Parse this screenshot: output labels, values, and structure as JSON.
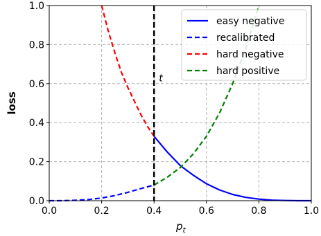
{
  "chart_data": {
    "type": "line",
    "xlabel": "p",
    "xlabel_subscript": "t",
    "ylabel": "loss",
    "xlim": [
      0.0,
      1.0
    ],
    "ylim": [
      0.0,
      1.0
    ],
    "grid": true,
    "legend_position": "top-right",
    "x_ticks": [
      "0.0",
      "0.2",
      "0.4",
      "0.6",
      "0.8",
      "1.0"
    ],
    "y_ticks": [
      "0.0",
      "0.2",
      "0.4",
      "0.6",
      "0.8",
      "1.0"
    ],
    "threshold": {
      "x": 0.4,
      "label": "t",
      "color": "#000000"
    },
    "series": [
      {
        "name": "easy negative",
        "color": "#0000ff",
        "dash": "solid",
        "x": [
          0.4,
          0.45,
          0.5,
          0.55,
          0.6,
          0.65,
          0.7,
          0.75,
          0.8,
          0.85,
          0.9,
          0.95,
          1.0
        ],
        "y": [
          0.33,
          0.25,
          0.18,
          0.13,
          0.087,
          0.055,
          0.032,
          0.017,
          0.008,
          0.003,
          0.001,
          0.0,
          0.0
        ]
      },
      {
        "name": "recalibrated",
        "color": "#0000ff",
        "dash": "dashed",
        "x": [
          0.0,
          0.05,
          0.1,
          0.15,
          0.2,
          0.25,
          0.3,
          0.35,
          0.4
        ],
        "y": [
          0.0,
          0.0,
          0.002,
          0.006,
          0.014,
          0.026,
          0.043,
          0.062,
          0.08
        ]
      },
      {
        "name": "hard negative",
        "color": "#ff0000",
        "dash": "dashed",
        "x": [
          0.2,
          0.225,
          0.25,
          0.275,
          0.3,
          0.325,
          0.35,
          0.375,
          0.4
        ],
        "y": [
          1.0,
          0.87,
          0.76,
          0.66,
          0.58,
          0.51,
          0.44,
          0.38,
          0.33
        ]
      },
      {
        "name": "hard positive",
        "color": "#008000",
        "dash": "dashed",
        "x": [
          0.4,
          0.45,
          0.5,
          0.55,
          0.6,
          0.65,
          0.7,
          0.75,
          0.8
        ],
        "y": [
          0.08,
          0.12,
          0.17,
          0.24,
          0.33,
          0.45,
          0.6,
          0.78,
          1.0
        ]
      }
    ]
  }
}
